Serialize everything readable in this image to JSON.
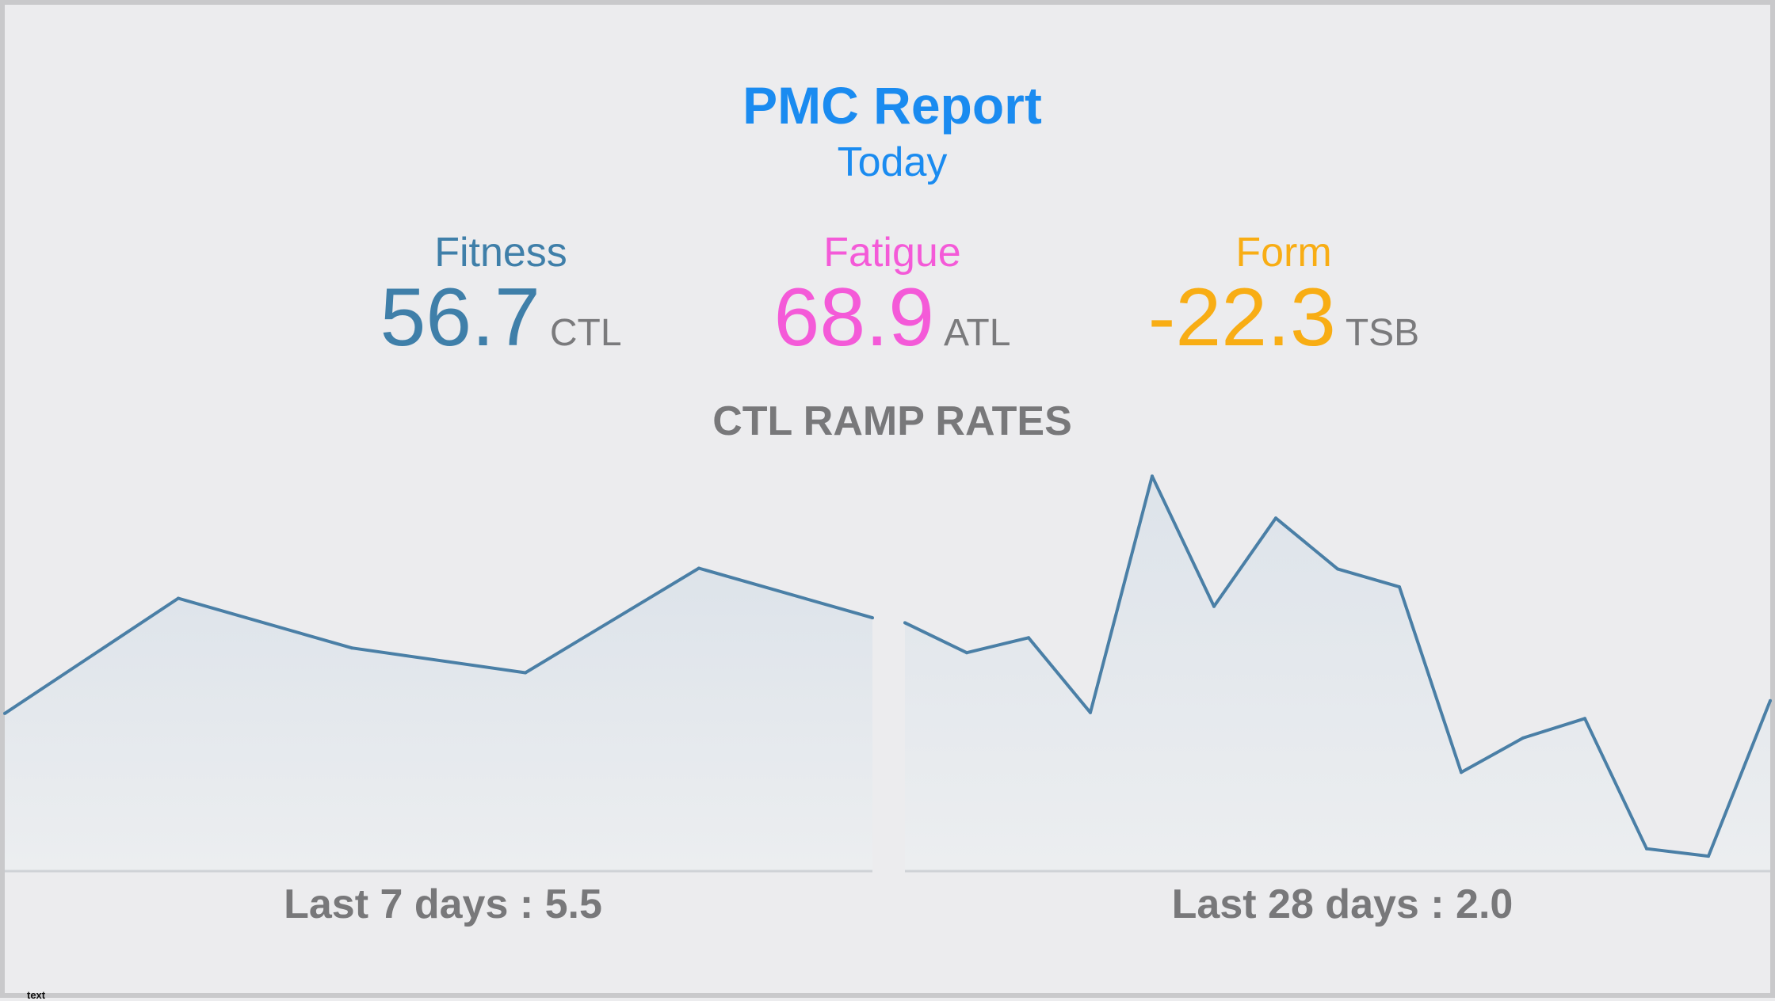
{
  "header": {
    "title": "PMC Report",
    "subtitle": "Today"
  },
  "metrics": [
    {
      "label": "Fitness",
      "value": "56.7",
      "unit": "CTL",
      "color": "#3f7fa9"
    },
    {
      "label": "Fatigue",
      "value": "68.9",
      "unit": "ATL",
      "color": "#f45ad8"
    },
    {
      "label": "Form",
      "value": "-22.3",
      "unit": "TSB",
      "color": "#f8ad14"
    }
  ],
  "section": {
    "title": "CTL RAMP RATES"
  },
  "charts": {
    "last7_label": "Last 7 days : 5.5",
    "last28_label": "Last 28 days : 2.0"
  },
  "footer": {
    "corner_text": "text"
  },
  "chart_data": [
    {
      "type": "area",
      "values": [
        3.05,
        6.3,
        4.9,
        4.2,
        7.15,
        5.75
      ],
      "ylim": [
        -1.4,
        10
      ],
      "color": "#4a7fa6"
    },
    {
      "type": "area",
      "values": [
        7.8,
        6.8,
        7.3,
        4.8,
        12.7,
        8.35,
        11.3,
        9.6,
        9.0,
        2.8,
        3.95,
        4.6,
        0.25,
        0.0,
        5.2
      ],
      "ylim": [
        -0.5,
        13.0
      ],
      "color": "#4a7fa6"
    }
  ]
}
